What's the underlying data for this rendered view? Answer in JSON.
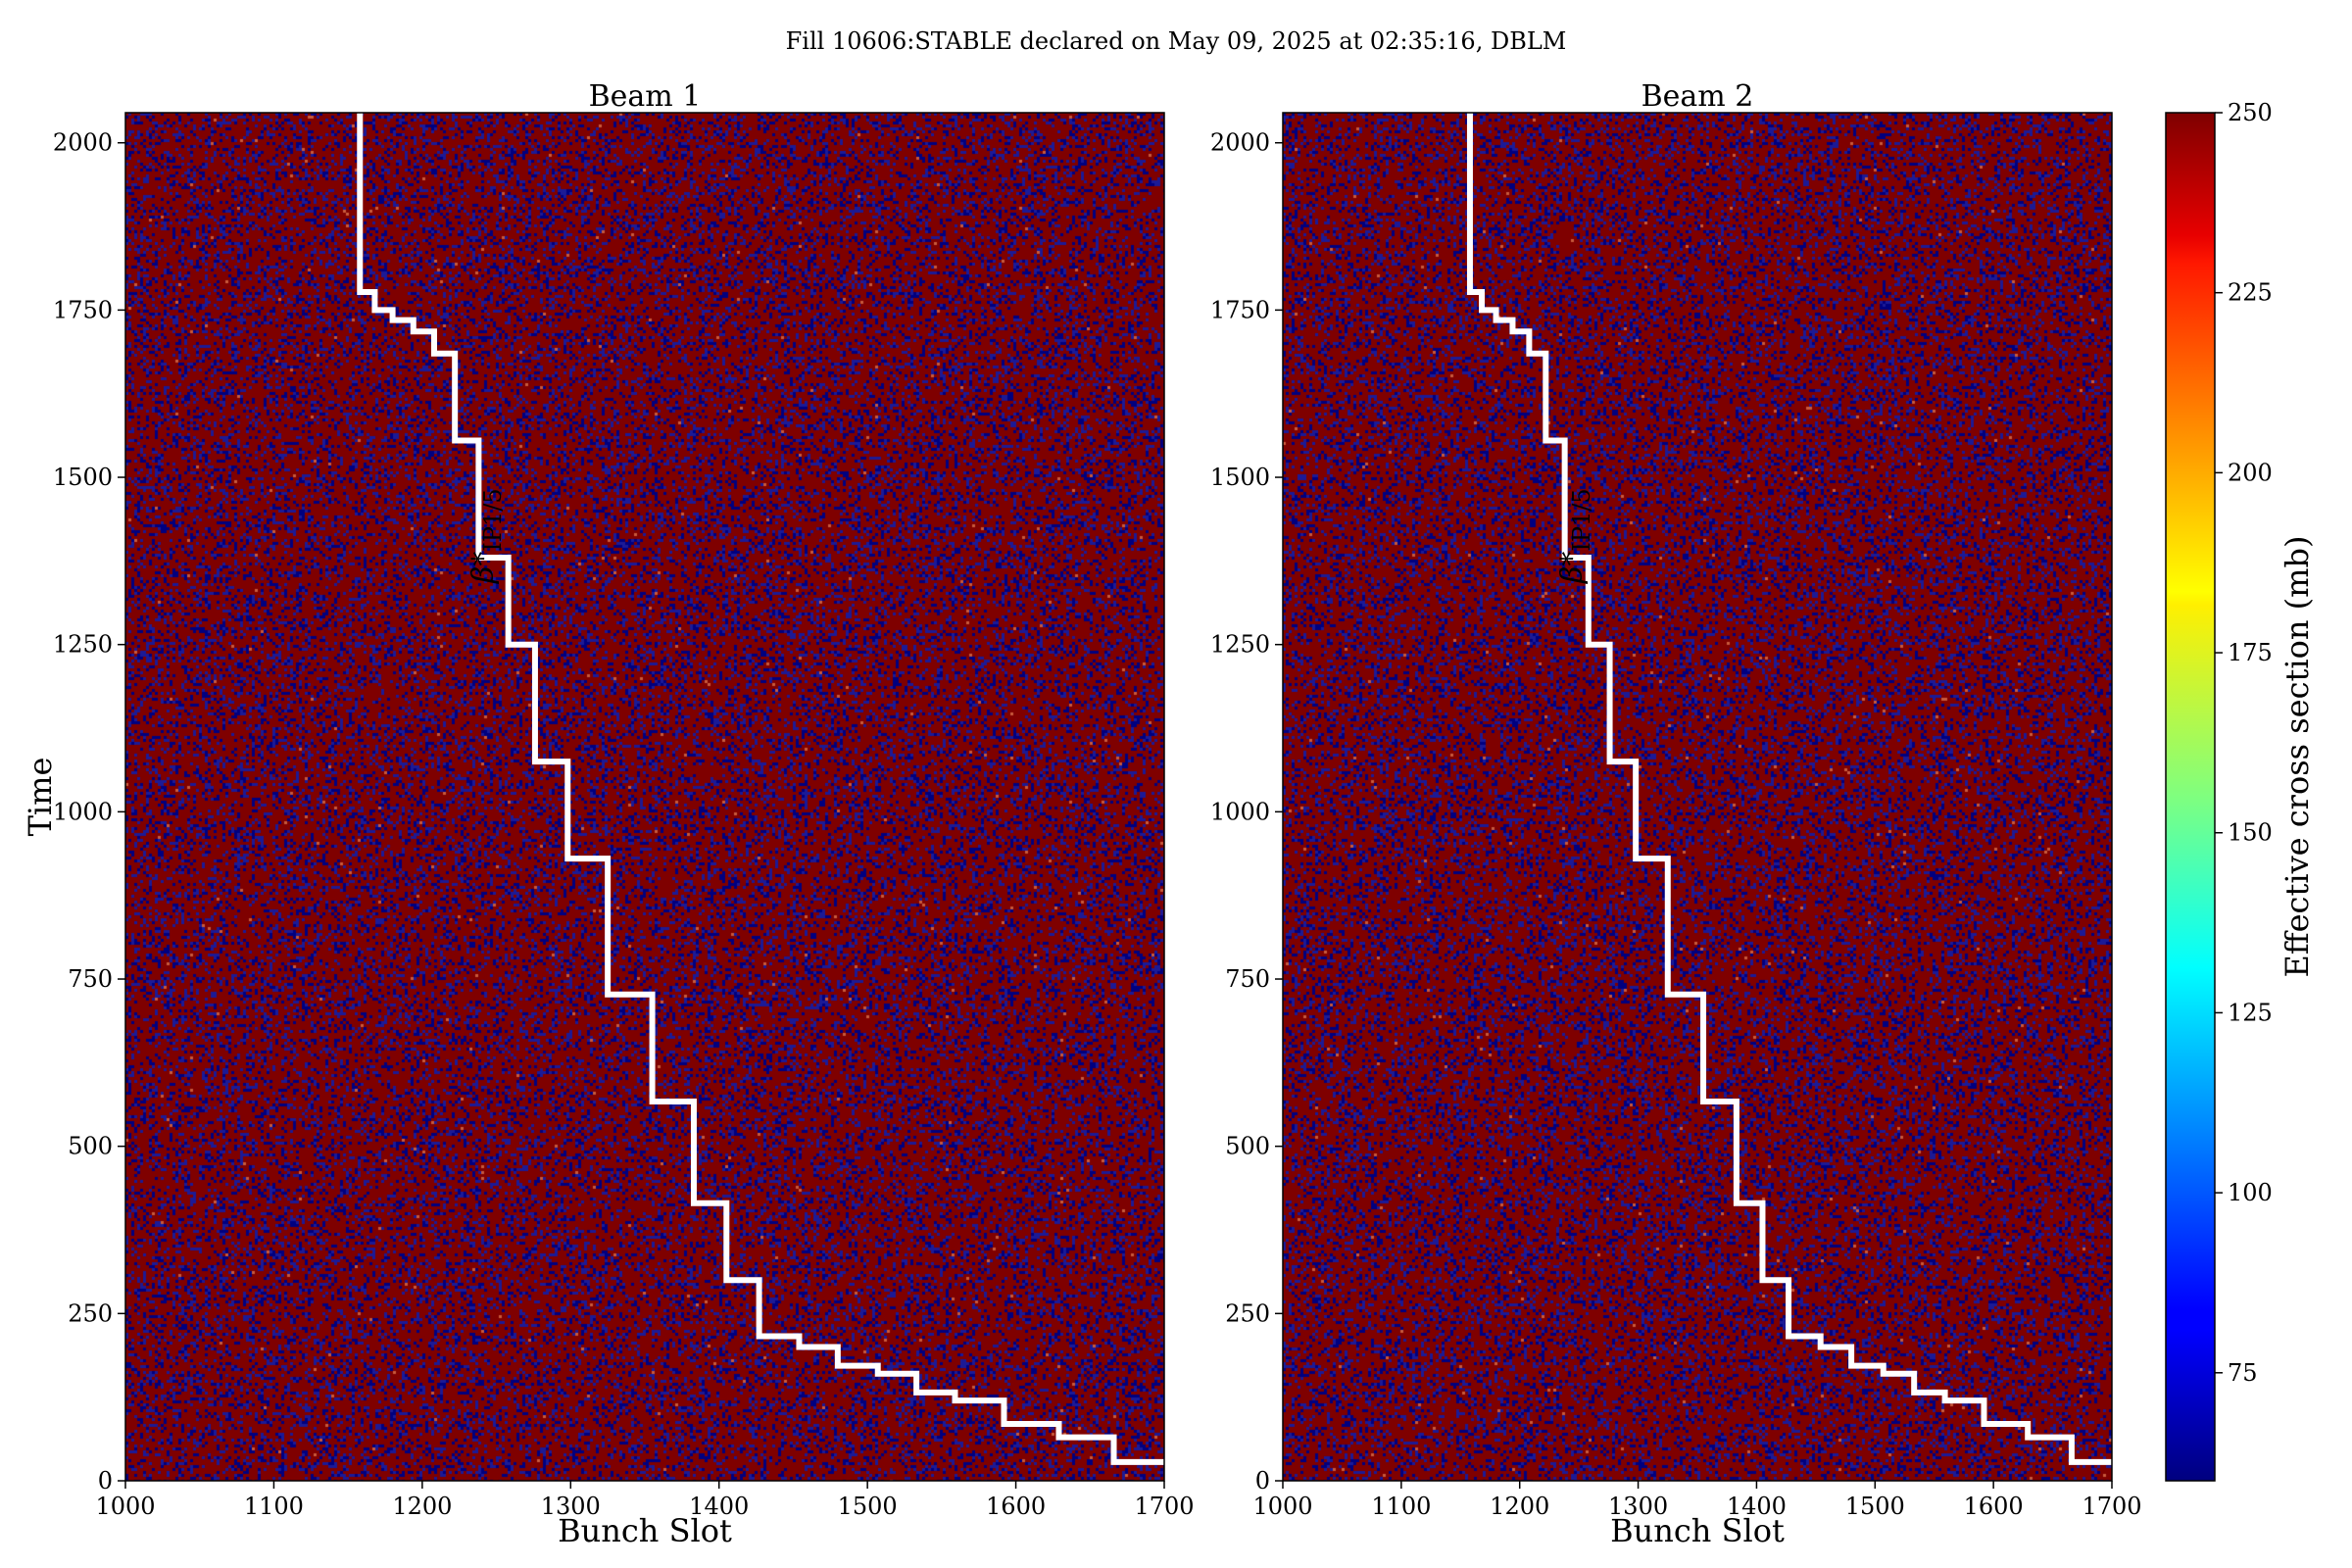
{
  "figure": {
    "suptitle": "Fill 10606:STABLE declared on May 09, 2025 at 02:35:16, DBLM"
  },
  "chart_data": [
    {
      "type": "heatmap",
      "title": "Beam 1",
      "xlabel": "Bunch Slot",
      "ylabel": "Time",
      "xlim": [
        1000,
        1700
      ],
      "ylim": [
        0,
        2045
      ],
      "xticks": [
        1000,
        1100,
        1200,
        1300,
        1400,
        1500,
        1600,
        1700
      ],
      "yticks": [
        0,
        250,
        500,
        750,
        1000,
        1250,
        1500,
        1750,
        2000
      ],
      "value_mix": {
        "high": 250,
        "low": 60,
        "high_fraction": 0.7
      },
      "overlay": {
        "label": "β*",
        "label_subscript": "IP1/5",
        "color": "#ffffff",
        "step_x": [
          1158,
          1168,
          1180,
          1194,
          1208,
          1222,
          1238,
          1258,
          1276,
          1298,
          1325,
          1355,
          1383,
          1405,
          1427,
          1454,
          1480,
          1507,
          1533,
          1559,
          1592,
          1629,
          1666,
          1700
        ],
        "step_y": [
          1777,
          1750,
          1735,
          1718,
          1685,
          1555,
          1380,
          1250,
          1075,
          930,
          727,
          567,
          415,
          300,
          216,
          200,
          172,
          160,
          132,
          120,
          85,
          65,
          28,
          28
        ]
      }
    },
    {
      "type": "heatmap",
      "title": "Beam 2",
      "xlabel": "Bunch Slot",
      "ylabel": "",
      "xlim": [
        1000,
        1700
      ],
      "ylim": [
        0,
        2045
      ],
      "xticks": [
        1000,
        1100,
        1200,
        1300,
        1400,
        1500,
        1600,
        1700
      ],
      "yticks": [
        0,
        250,
        500,
        750,
        1000,
        1250,
        1500,
        1750,
        2000
      ],
      "value_mix": {
        "high": 250,
        "low": 60,
        "high_fraction": 0.7
      },
      "overlay": {
        "label": "β*",
        "label_subscript": "IP1/5",
        "color": "#ffffff",
        "step_x": [
          1158,
          1168,
          1180,
          1194,
          1208,
          1222,
          1238,
          1258,
          1276,
          1298,
          1325,
          1355,
          1383,
          1405,
          1427,
          1454,
          1480,
          1507,
          1533,
          1559,
          1592,
          1629,
          1666,
          1700
        ],
        "step_y": [
          1777,
          1750,
          1735,
          1718,
          1685,
          1555,
          1380,
          1250,
          1075,
          930,
          727,
          567,
          415,
          300,
          216,
          200,
          172,
          160,
          132,
          120,
          85,
          65,
          28,
          28
        ]
      }
    }
  ],
  "colorbar": {
    "label": "Effective cross section (mb)",
    "vmin": 60,
    "vmax": 250,
    "ticks": [
      75,
      100,
      125,
      150,
      175,
      200,
      225,
      250
    ],
    "colormap": "jet",
    "colors": {
      "low": "#00007f",
      "high": "#7f0000"
    }
  }
}
